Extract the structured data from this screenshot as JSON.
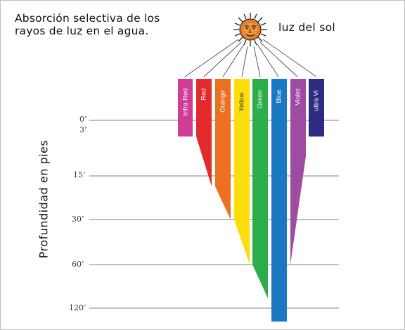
{
  "title": "Absorción selectiva de los rayos de luz en el agua.",
  "sun_label": "luz del sol",
  "y_axis_label": "Profundidad en pies",
  "depth_marks": [
    "0’",
    "3’",
    "15’",
    "30’",
    "60’",
    "120’"
  ],
  "bands": [
    {
      "label": "Infra Red",
      "color": "#cf3d96"
    },
    {
      "label": "Red",
      "color": "#e32a2c"
    },
    {
      "label": "Orange",
      "color": "#ec7021"
    },
    {
      "label": "Yellow",
      "color": "#fbde0a"
    },
    {
      "label": "Green",
      "color": "#2bad49"
    },
    {
      "label": "Blue",
      "color": "#1b79c4"
    },
    {
      "label": "Violet",
      "color": "#9e4ca1"
    },
    {
      "label": "ultra Vi",
      "color": "#2e2c82"
    }
  ],
  "colors": {
    "line": "#4d4d4d",
    "sun": "#e87d2d"
  }
}
